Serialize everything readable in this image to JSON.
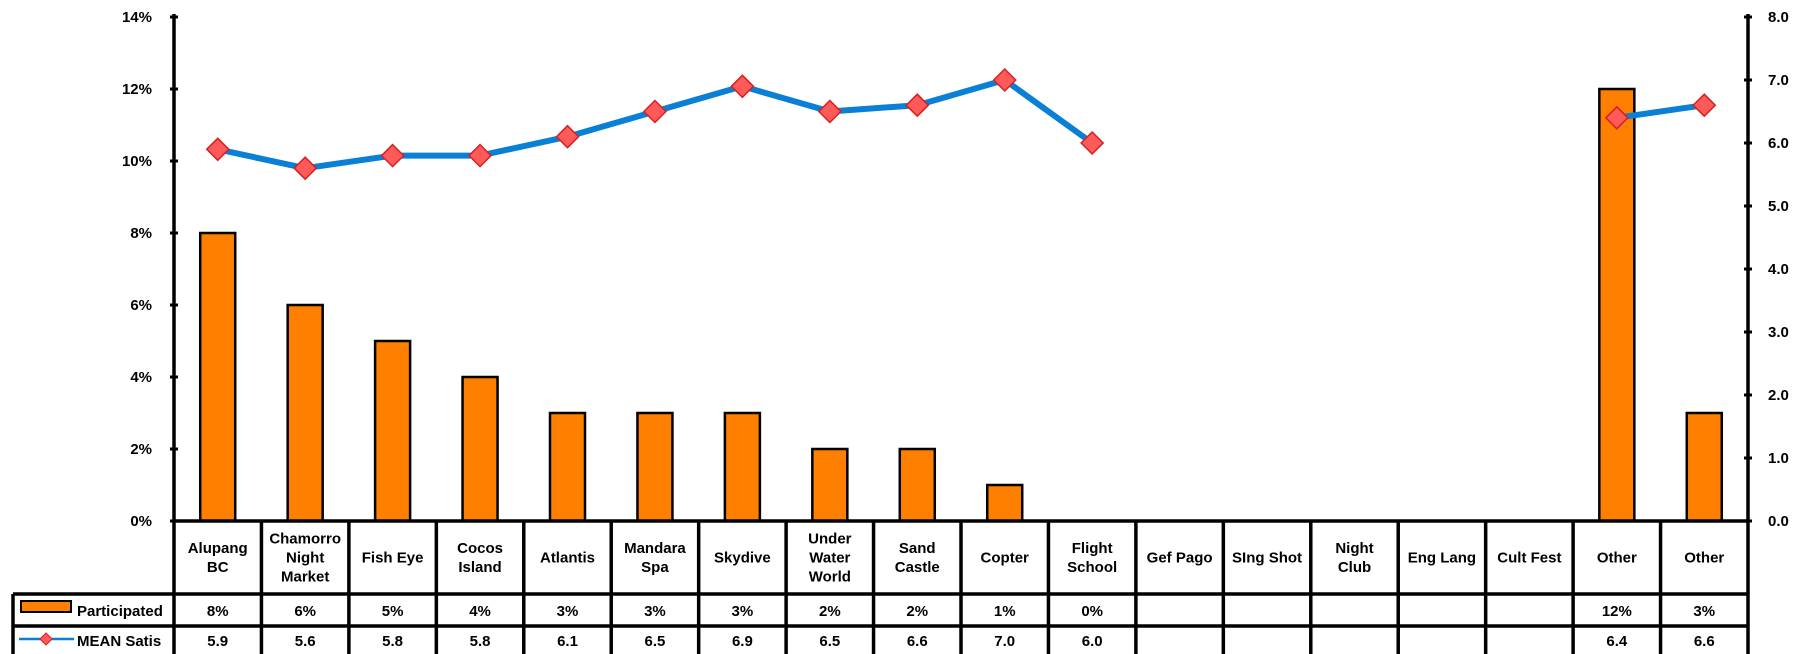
{
  "chart_data": {
    "type": "bar",
    "categories": [
      [
        "Alupang",
        "BC"
      ],
      [
        "Chamorro",
        "Night",
        "Market"
      ],
      [
        "Fish Eye"
      ],
      [
        "Cocos",
        "Island"
      ],
      [
        "Atlantis"
      ],
      [
        "Mandara",
        "Spa"
      ],
      [
        "Skydive"
      ],
      [
        "Under",
        "Water",
        "World"
      ],
      [
        "Sand",
        "Castle"
      ],
      [
        "Copter"
      ],
      [
        "Flight",
        "School"
      ],
      [
        "Gef Pago"
      ],
      [
        "SIng Shot"
      ],
      [
        "Night",
        "Club"
      ],
      [
        "Eng Lang"
      ],
      [
        "Cult Fest"
      ],
      [
        "Other"
      ],
      [
        "Other"
      ]
    ],
    "series": [
      {
        "name": "Participated",
        "type": "bar",
        "axis": "left",
        "color": "#ff7f00",
        "values": [
          8,
          6,
          5,
          4,
          3,
          3,
          3,
          2,
          2,
          1,
          0,
          null,
          null,
          null,
          null,
          null,
          12,
          3
        ],
        "labels": [
          "8%",
          "6%",
          "5%",
          "4%",
          "3%",
          "3%",
          "3%",
          "2%",
          "2%",
          "1%",
          "0%",
          "",
          "",
          "",
          "",
          "",
          "12%",
          "3%"
        ]
      },
      {
        "name": "MEAN Satis",
        "type": "line",
        "axis": "right",
        "color": "#0a7fd6",
        "marker_color": "#ff5a5a",
        "values": [
          5.9,
          5.6,
          5.8,
          5.8,
          6.1,
          6.5,
          6.9,
          6.5,
          6.6,
          7.0,
          6.0,
          null,
          null,
          null,
          null,
          null,
          6.4,
          6.6
        ],
        "labels": [
          "5.9",
          "5.6",
          "5.8",
          "5.8",
          "6.1",
          "6.5",
          "6.9",
          "6.5",
          "6.6",
          "7.0",
          "6.0",
          "",
          "",
          "",
          "",
          "",
          "6.4",
          "6.6"
        ]
      }
    ],
    "left_axis": {
      "ylim": [
        0,
        14
      ],
      "ticks": [
        "0%",
        "2%",
        "4%",
        "6%",
        "8%",
        "10%",
        "12%",
        "14%"
      ]
    },
    "right_axis": {
      "ylim": [
        0,
        8
      ],
      "ticks": [
        "0.0",
        "1.0",
        "2.0",
        "3.0",
        "4.0",
        "5.0",
        "6.0",
        "7.0",
        "8.0"
      ]
    },
    "grid": false,
    "legend": "data-table"
  }
}
